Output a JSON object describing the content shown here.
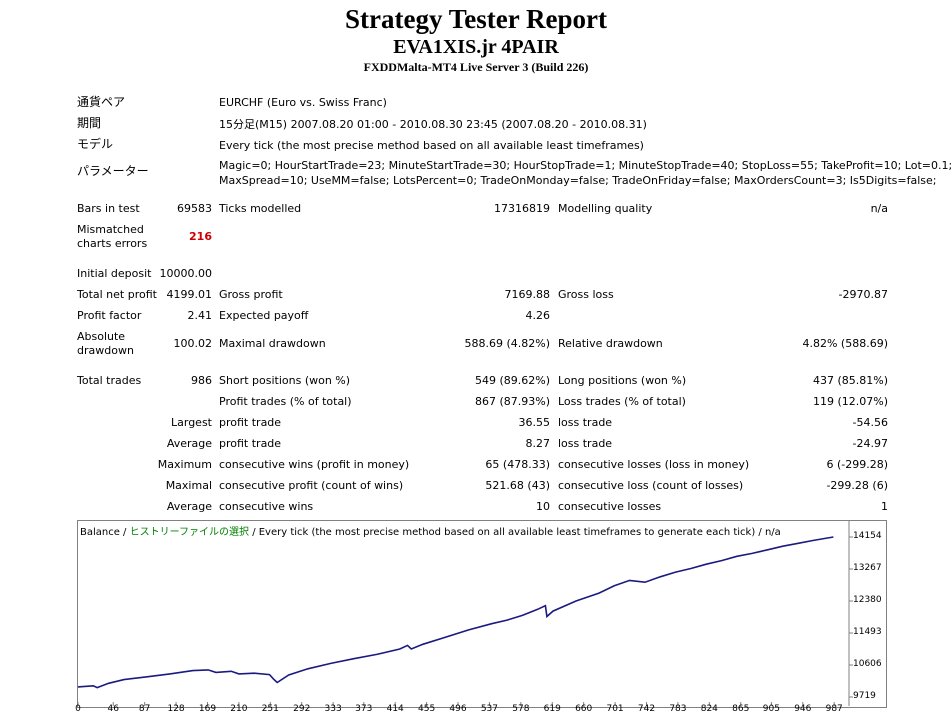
{
  "header": {
    "title": "Strategy Tester Report",
    "ea_name": "EVA1XIS.jr 4PAIR",
    "server": "FXDDMalta-MT4 Live Server 3 (Build 226)"
  },
  "info": {
    "symbol_label": "通貨ペア",
    "symbol_value": "EURCHF (Euro vs. Swiss Franc)",
    "period_label": "期間",
    "period_value": "15分足(M15) 2007.08.20 01:00 - 2010.08.30 23:45 (2007.08.20 - 2010.08.31)",
    "model_label": "モデル",
    "model_value": "Every tick (the most precise method based on all available least timeframes)",
    "params_label": "パラメーター",
    "params_line1": "Magic=0; HourStartTrade=23; MinuteStartTrade=30; HourStopTrade=1; MinuteStopTrade=40; StopLoss=55; TakeProfit=10; Lot=0.1;",
    "params_line2": "MaxSpread=10; UseMM=false; LotsPercent=0; TradeOnMonday=false; TradeOnFriday=false; MaxOrdersCount=3; Is5Digits=false;"
  },
  "stats": {
    "bars_label": "Bars in test",
    "bars_value": "69583",
    "ticks_label": "Ticks modelled",
    "ticks_value": "17316819",
    "quality_label": "Modelling quality",
    "quality_value": "n/a",
    "mismatch_label1": "Mismatched",
    "mismatch_label2": "charts errors",
    "mismatch_value": "216",
    "deposit_label": "Initial deposit",
    "deposit_value": "10000.00",
    "netprofit_label": "Total net profit",
    "netprofit_value": "4199.01",
    "grossprofit_label": "Gross profit",
    "grossprofit_value": "7169.88",
    "grossloss_label": "Gross loss",
    "grossloss_value": "-2970.87",
    "pf_label": "Profit factor",
    "pf_value": "2.41",
    "payoff_label": "Expected payoff",
    "payoff_value": "4.26",
    "absdd_label1": "Absolute",
    "absdd_label2": "drawdown",
    "absdd_value": "100.02",
    "maxdd_label": "Maximal drawdown",
    "maxdd_value": "588.69 (4.82%)",
    "reldd_label": "Relative drawdown",
    "reldd_value": "4.82% (588.69)",
    "trades_label": "Total trades",
    "trades_value": "986",
    "short_label": "Short positions (won %)",
    "short_value": "549 (89.62%)",
    "long_label": "Long positions (won %)",
    "long_value": "437 (85.81%)",
    "ptrades_label": "Profit trades (% of total)",
    "ptrades_value": "867 (87.93%)",
    "ltrades_label": "Loss trades (% of total)",
    "ltrades_value": "119 (12.07%)",
    "largest_label": "Largest",
    "largest_profit_label": "profit trade",
    "largest_profit_value": "36.55",
    "largest_loss_label": "loss trade",
    "largest_loss_value": "-54.56",
    "average_label": "Average",
    "average_profit_label": "profit trade",
    "average_profit_value": "8.27",
    "average_loss_label": "loss trade",
    "average_loss_value": "-24.97",
    "maximum_label": "Maximum",
    "cwins_label": "consecutive wins (profit in money)",
    "cwins_value": "65 (478.33)",
    "closses_label": "consecutive losses (loss in money)",
    "closses_value": "6 (-299.28)",
    "maximal_label": "Maximal",
    "cprofit_label": "consecutive profit (count of wins)",
    "cprofit_value": "521.68 (43)",
    "closs_label": "consecutive loss (count of losses)",
    "closs_value": "-299.28 (6)",
    "average2_label": "Average",
    "avgwins_label": "consecutive wins",
    "avgwins_value": "10",
    "avglosses_label": "consecutive losses",
    "avglosses_value": "1"
  },
  "chart_title": {
    "part1": "Balance / ",
    "part2": "ヒストリーファイルの選択",
    "part3": " / Every tick (the most precise method based on all available least timeframes to generate each tick) / n/a"
  },
  "colors": {
    "line": "#1a1a80",
    "mismatch": "#cc0000",
    "history": "#008000"
  },
  "chart_data": {
    "type": "line",
    "title": "",
    "xlabel": "",
    "ylabel": "",
    "x_ticks": [
      "0",
      "46",
      "87",
      "128",
      "169",
      "210",
      "251",
      "292",
      "333",
      "373",
      "414",
      "455",
      "496",
      "537",
      "578",
      "619",
      "660",
      "701",
      "742",
      "783",
      "824",
      "865",
      "905",
      "946",
      "987"
    ],
    "y_ticks": [
      "14154",
      "13267",
      "12380",
      "11493",
      "10606",
      "9719"
    ],
    "ylim": [
      9719,
      14154
    ],
    "xlim": [
      0,
      1005
    ],
    "series": [
      {
        "x": [
          0,
          20,
          25,
          40,
          60,
          90,
          120,
          150,
          170,
          180,
          200,
          210,
          230,
          250,
          255,
          260,
          275,
          300,
          330,
          360,
          390,
          420,
          430,
          435,
          450,
          480,
          510,
          540,
          560,
          580,
          600,
          610,
          612,
          620,
          650,
          680,
          700,
          720,
          740,
          760,
          780,
          800,
          820,
          840,
          860,
          880,
          900,
          920,
          940,
          960,
          986
        ],
        "y": [
          10000,
          10030,
          9980,
          10100,
          10200,
          10280,
          10360,
          10450,
          10470,
          10400,
          10430,
          10360,
          10380,
          10340,
          10220,
          10120,
          10330,
          10500,
          10650,
          10780,
          10900,
          11050,
          11150,
          11050,
          11180,
          11380,
          11580,
          11750,
          11850,
          11980,
          12150,
          12250,
          11950,
          12100,
          12380,
          12600,
          12800,
          12950,
          12900,
          13050,
          13180,
          13280,
          13400,
          13500,
          13620,
          13700,
          13800,
          13900,
          13980,
          14060,
          14154
        ]
      }
    ]
  }
}
